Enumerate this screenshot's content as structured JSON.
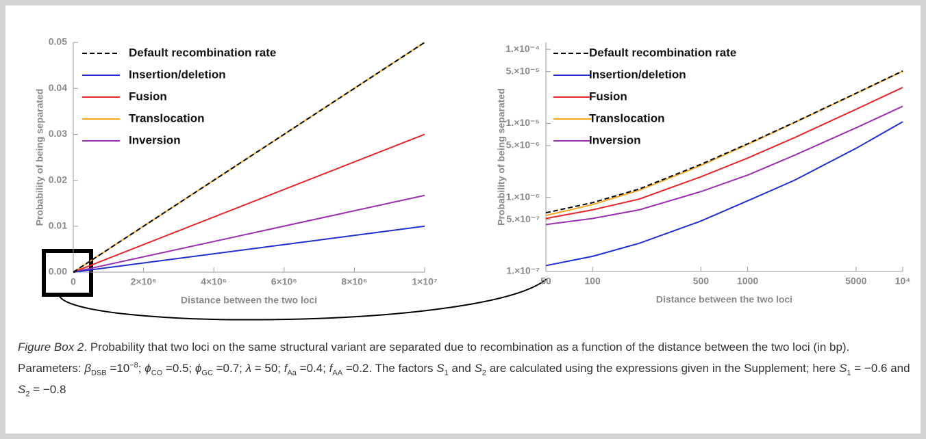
{
  "chart_data": [
    {
      "type": "line",
      "xlabel": "Distance between the two loci",
      "ylabel": "Probability of being separated",
      "x": [
        0,
        10000000
      ],
      "series": [
        {
          "name": "Default recombination rate",
          "color": "#000000",
          "dash": true,
          "values": [
            0,
            0.05
          ]
        },
        {
          "name": "Insertion/deletion",
          "color": "#1f2fd0",
          "values": [
            0,
            0.01
          ]
        },
        {
          "name": "Fusion",
          "color": "#e8252a",
          "values": [
            0,
            0.03
          ]
        },
        {
          "name": "Translocation",
          "color": "#f5a623",
          "values": [
            0,
            0.05
          ]
        },
        {
          "name": "Inversion",
          "color": "#9b2fb0",
          "values": [
            0,
            0.0167
          ]
        }
      ],
      "xlim": [
        0,
        10000000
      ],
      "ylim": [
        0,
        0.05
      ],
      "xticks": [
        0,
        {
          "value": 2000000,
          "label": "2×10⁶"
        },
        {
          "value": 4000000,
          "label": "4×10⁶"
        },
        {
          "value": 6000000,
          "label": "6×10⁶"
        },
        {
          "value": 8000000,
          "label": "8×10⁶"
        },
        {
          "value": 10000000,
          "label": "1×10⁷"
        }
      ],
      "yticks": [
        {
          "value": 0,
          "label": "0.00"
        },
        0.01,
        0.02,
        0.03,
        0.04,
        0.05
      ],
      "legend": "upper left"
    },
    {
      "type": "line",
      "xlabel": "Distance between the two loci",
      "ylabel": "Probability of being separated",
      "xscale": "log",
      "yscale": "log",
      "x": [
        50,
        100,
        200,
        500,
        1000,
        2000,
        5000,
        10000
      ],
      "series": [
        {
          "name": "Default recombination rate",
          "color": "#000000",
          "dash": true,
          "values": [
            6.2e-07,
            8.5e-07,
            1.3e-06,
            2.8e-06,
            5.3e-06,
            1.03e-05,
            2.55e-05,
            5.1e-05
          ]
        },
        {
          "name": "Insertion/deletion",
          "color": "#1f2fd0",
          "values": [
            1.2e-07,
            1.6e-07,
            2.4e-07,
            4.8e-07,
            9e-07,
            1.7e-06,
            4.6e-06,
            1.05e-05
          ]
        },
        {
          "name": "Fusion",
          "color": "#e8252a",
          "values": [
            5.2e-07,
            6.8e-07,
            9.5e-07,
            1.9e-06,
            3.4e-06,
            6.4e-06,
            1.55e-05,
            3.05e-05
          ]
        },
        {
          "name": "Translocation",
          "color": "#f5a623",
          "values": [
            5.7e-07,
            8e-07,
            1.25e-06,
            2.7e-06,
            5.2e-06,
            1.02e-05,
            2.53e-05,
            5.05e-05
          ]
        },
        {
          "name": "Inversion",
          "color": "#9b2fb0",
          "values": [
            4.3e-07,
            5.2e-07,
            6.8e-07,
            1.2e-06,
            2e-06,
            3.7e-06,
            8.7e-06,
            1.7e-05
          ]
        }
      ],
      "xlim": [
        50,
        10000
      ],
      "ylim": [
        1e-07,
        0.000124
      ],
      "xticks": [
        50,
        100,
        500,
        1000,
        5000,
        {
          "value": 10000,
          "label": "10⁴"
        }
      ],
      "yticks": [
        {
          "value": 1e-07,
          "label": "1.×10⁻⁷"
        },
        {
          "value": 5e-07,
          "label": "5.×10⁻⁷"
        },
        {
          "value": 1e-06,
          "label": "1.×10⁻⁶"
        },
        {
          "value": 5e-06,
          "label": "5.×10⁻⁶"
        },
        {
          "value": 1e-05,
          "label": "1.×10⁻⁵"
        },
        {
          "value": 5e-05,
          "label": "5.×10⁻⁵"
        },
        {
          "value": 0.0001,
          "label": "1.×10⁻⁴"
        }
      ],
      "legend": "upper left"
    }
  ],
  "caption": [
    {
      "text": "Figure Box 2",
      "style": "i"
    },
    {
      "text": ". Probability that two loci on the same structural variant are separated due to recombination as a function of the distance between the two loci (in bp). Parameters: "
    },
    {
      "text": "β",
      "style": "i"
    },
    {
      "text": "DSB",
      "style": "sub"
    },
    {
      "text": " =10"
    },
    {
      "text": "−8",
      "style": "sup"
    },
    {
      "text": "; "
    },
    {
      "text": "ϕ",
      "style": "i"
    },
    {
      "text": "CO",
      "style": "sub"
    },
    {
      "text": " =0.5; "
    },
    {
      "text": "ϕ",
      "style": "i"
    },
    {
      "text": "GC",
      "style": "sub"
    },
    {
      "text": " =0.7; "
    },
    {
      "text": "λ",
      "style": "i"
    },
    {
      "text": " = 50; "
    },
    {
      "text": "f",
      "style": "i"
    },
    {
      "text": "Aa",
      "style": "sub"
    },
    {
      "text": " =0.4; "
    },
    {
      "text": "f",
      "style": "i"
    },
    {
      "text": "AA",
      "style": "sub"
    },
    {
      "text": " =0.2. The factors "
    },
    {
      "text": "S",
      "style": "i"
    },
    {
      "text": "1",
      "style": "sub"
    },
    {
      "text": " and "
    },
    {
      "text": "S",
      "style": "i"
    },
    {
      "text": "2",
      "style": "sub"
    },
    {
      "text": " are calculated using the expressions given in the Supplement; here "
    },
    {
      "text": "S",
      "style": "i"
    },
    {
      "text": "1",
      "style": "sub"
    },
    {
      "text": " = −0.6 and "
    },
    {
      "text": "S",
      "style": "i"
    },
    {
      "text": "2",
      "style": "sub"
    },
    {
      "text": " = −0.8"
    }
  ]
}
